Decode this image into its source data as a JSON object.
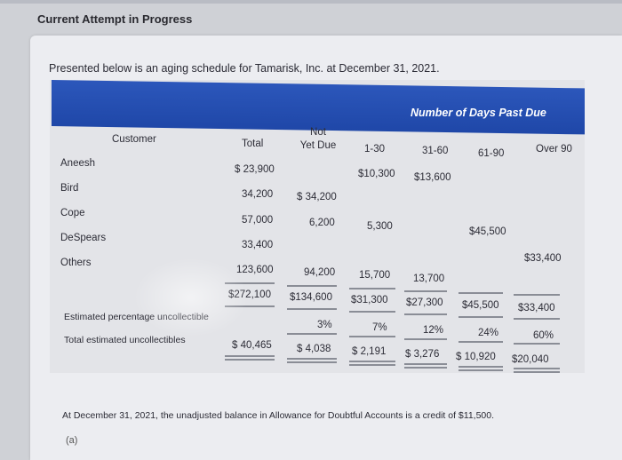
{
  "heading": "Current Attempt in Progress",
  "intro": "Presented below is an aging schedule for Tamarisk, Inc. at December 31, 2021.",
  "table": {
    "banner": "Number of Days Past Due",
    "col_customer": "Customer",
    "col_total": "Total",
    "col_not_yet_due_1": "Not",
    "col_not_yet_due_2": "Yet Due",
    "col_1_30": "1-30",
    "col_31_60": "31-60",
    "col_61_90": "61-90",
    "col_over_90": "Over 90",
    "rows": {
      "aneesh": {
        "name": "Aneesh",
        "total": "$ 23,900",
        "d1_30": "$10,300",
        "d31_60": "$13,600"
      },
      "bird": {
        "name": "Bird",
        "total": "34,200",
        "not_due": "$ 34,200"
      },
      "cope": {
        "name": "Cope",
        "total": "57,000",
        "not_due": "6,200",
        "d1_30": "5,300",
        "d61_90": "$45,500"
      },
      "despears": {
        "name": "DeSpears",
        "total": "33,400",
        "over90": "$33,400"
      },
      "others": {
        "name": "Others",
        "total": "123,600",
        "not_due": "94,200",
        "d1_30": "15,700",
        "d31_60": "13,700"
      }
    },
    "totals": {
      "total": "$272,100",
      "not_due": "$134,600",
      "d1_30": "$31,300",
      "d31_60": "$27,300",
      "d61_90": "$45,500",
      "over90": "$33,400"
    },
    "pct_label": "Estimated percentage uncollectible",
    "pct": {
      "not_due": "3%",
      "d1_30": "7%",
      "d31_60": "12%",
      "d61_90": "24%",
      "over90": "60%"
    },
    "est_label": "Total estimated uncollectibles",
    "est": {
      "total": "$ 40,465",
      "not_due": "$ 4,038",
      "d1_30": "$ 2,191",
      "d31_60": "$ 3,276",
      "d61_90": "$ 10,920",
      "over90": "$20,040"
    }
  },
  "footer": "At December 31, 2021, the unadjusted balance in Allowance for Doubtful Accounts is a credit of $11,500.",
  "part_label": "(a)"
}
